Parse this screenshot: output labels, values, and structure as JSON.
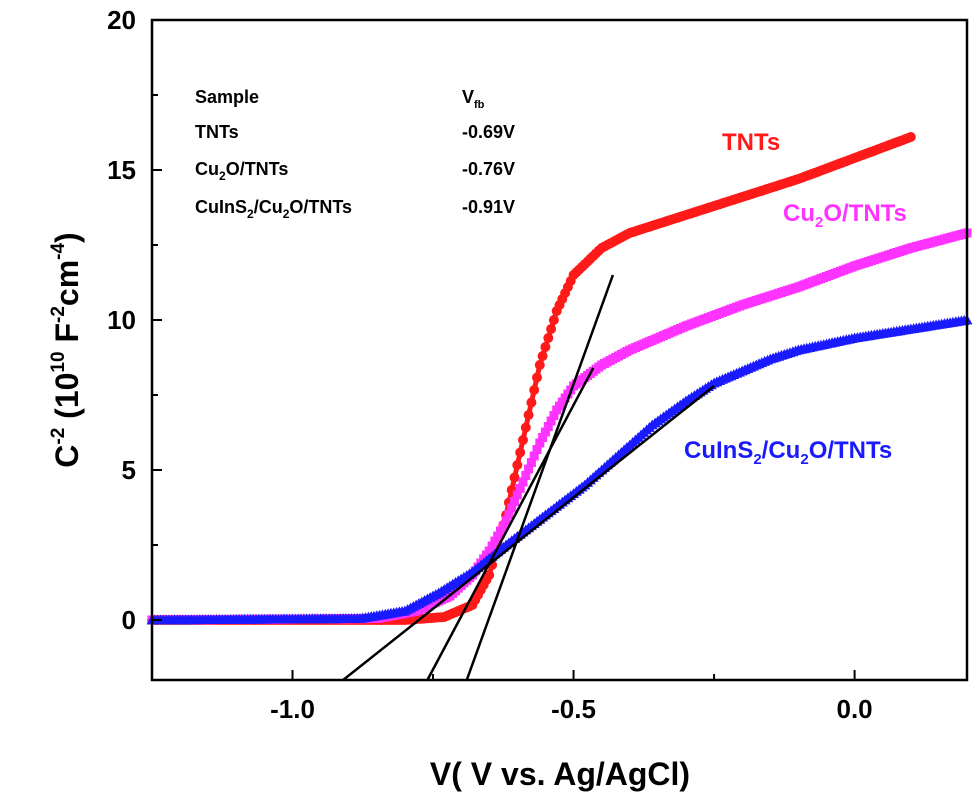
{
  "chart_data": {
    "type": "scatter",
    "xlabel": {
      "main": "V( V vs. Ag/AgCl)"
    },
    "ylabel": {
      "a": "C",
      "a_sup": "-2",
      "b": " (10",
      "b_sup": "10",
      "c": " F",
      "c_sup": "-2",
      "d": "cm",
      "d_sup": "-4",
      "e": ")"
    },
    "xlim": [
      -1.25,
      0.2
    ],
    "ylim": [
      -2,
      20
    ],
    "x_ticks": [
      {
        "value": -1.0,
        "label": "-1.0"
      },
      {
        "value": -0.5,
        "label": "-0.5"
      },
      {
        "value": 0.0,
        "label": "0.0"
      }
    ],
    "y_ticks": [
      {
        "value": 0,
        "label": "0"
      },
      {
        "value": 5,
        "label": "5"
      },
      {
        "value": 10,
        "label": "10"
      },
      {
        "value": 15,
        "label": "15"
      },
      {
        "value": 20,
        "label": "20"
      }
    ],
    "grid": false,
    "series": [
      {
        "name": "TNTs",
        "label_parts": [
          {
            "t": "TNTs"
          }
        ],
        "color": "#ff1a1a",
        "marker": "circle",
        "x_range": [
          -1.25,
          0.1
        ],
        "points": [
          [
            -1.25,
            0.0
          ],
          [
            -0.8,
            0.0
          ],
          [
            -0.73,
            0.1
          ],
          [
            -0.68,
            0.5
          ],
          [
            -0.65,
            1.5
          ],
          [
            -0.62,
            3.5
          ],
          [
            -0.59,
            6.0
          ],
          [
            -0.56,
            8.5
          ],
          [
            -0.53,
            10.3
          ],
          [
            -0.5,
            11.5
          ],
          [
            -0.45,
            12.4
          ],
          [
            -0.4,
            12.9
          ],
          [
            -0.35,
            13.2
          ],
          [
            -0.3,
            13.5
          ],
          [
            -0.2,
            14.1
          ],
          [
            -0.1,
            14.7
          ],
          [
            0.0,
            15.4
          ],
          [
            0.1,
            16.1
          ]
        ],
        "fit_line": [
          [
            -0.69,
            -2
          ],
          [
            -0.43,
            11.5
          ]
        ]
      },
      {
        "name": "Cu2O/TNTs",
        "label_parts": [
          {
            "t": "Cu"
          },
          {
            "t": "2",
            "sub": true
          },
          {
            "t": "O/TNTs"
          }
        ],
        "color": "#ff33ff",
        "marker": "square",
        "x_range": [
          -1.25,
          0.2
        ],
        "points": [
          [
            -1.25,
            0.0
          ],
          [
            -0.85,
            0.05
          ],
          [
            -0.78,
            0.3
          ],
          [
            -0.72,
            0.8
          ],
          [
            -0.68,
            1.5
          ],
          [
            -0.65,
            2.3
          ],
          [
            -0.62,
            3.3
          ],
          [
            -0.59,
            4.6
          ],
          [
            -0.56,
            5.9
          ],
          [
            -0.53,
            7.0
          ],
          [
            -0.5,
            7.8
          ],
          [
            -0.45,
            8.5
          ],
          [
            -0.4,
            9.0
          ],
          [
            -0.3,
            9.8
          ],
          [
            -0.2,
            10.5
          ],
          [
            -0.1,
            11.1
          ],
          [
            0.0,
            11.8
          ],
          [
            0.1,
            12.4
          ],
          [
            0.2,
            12.9
          ]
        ],
        "fit_line": [
          [
            -0.76,
            -2
          ],
          [
            -0.465,
            8.4
          ]
        ]
      },
      {
        "name": "CuInS2/Cu2O/TNTs",
        "label_parts": [
          {
            "t": "CuInS"
          },
          {
            "t": "2",
            "sub": true
          },
          {
            "t": "/Cu"
          },
          {
            "t": "2",
            "sub": true
          },
          {
            "t": "O/TNTs"
          }
        ],
        "color": "#1a1aff",
        "marker": "triangle",
        "x_range": [
          -1.25,
          0.2
        ],
        "points": [
          [
            -1.25,
            0.0
          ],
          [
            -0.88,
            0.05
          ],
          [
            -0.8,
            0.3
          ],
          [
            -0.74,
            0.9
          ],
          [
            -0.68,
            1.6
          ],
          [
            -0.62,
            2.5
          ],
          [
            -0.55,
            3.5
          ],
          [
            -0.48,
            4.5
          ],
          [
            -0.42,
            5.5
          ],
          [
            -0.36,
            6.5
          ],
          [
            -0.3,
            7.3
          ],
          [
            -0.25,
            7.9
          ],
          [
            -0.2,
            8.3
          ],
          [
            -0.15,
            8.7
          ],
          [
            -0.1,
            9.0
          ],
          [
            0.0,
            9.4
          ],
          [
            0.1,
            9.7
          ],
          [
            0.2,
            10.0
          ]
        ],
        "fit_line": [
          [
            -0.91,
            -2
          ],
          [
            -0.25,
            7.8
          ]
        ]
      }
    ]
  },
  "table": {
    "header_sample": "Sample",
    "header_vfb": "V",
    "header_vfb_sub": "fb",
    "rows": [
      {
        "name_parts": [
          {
            "t": "TNTs"
          }
        ],
        "value": "-0.69V"
      },
      {
        "name_parts": [
          {
            "t": "Cu"
          },
          {
            "t": "2",
            "sub": true
          },
          {
            "t": "O/TNTs"
          }
        ],
        "value": "-0.76V"
      },
      {
        "name_parts": [
          {
            "t": "CuInS"
          },
          {
            "t": "2",
            "sub": true
          },
          {
            "t": "/Cu"
          },
          {
            "t": "2",
            "sub": true
          },
          {
            "t": "O/TNTs"
          }
        ],
        "value": "-0.91V"
      }
    ]
  }
}
